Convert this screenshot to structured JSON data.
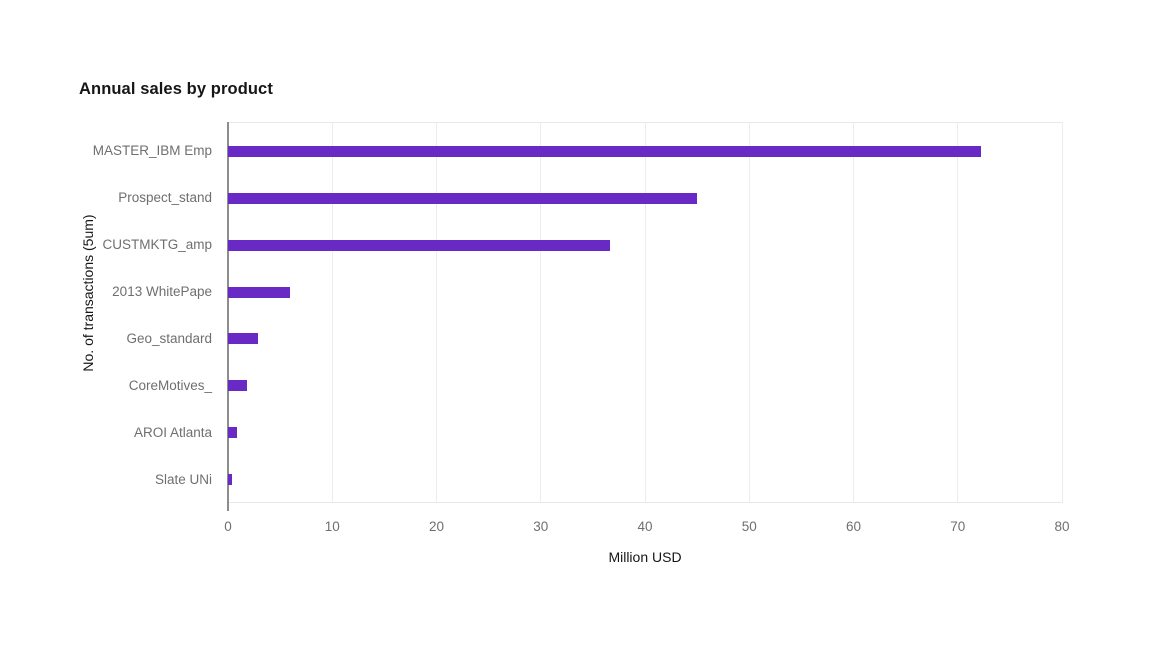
{
  "page": {
    "background": "#ffffff"
  },
  "chart_data": {
    "type": "bar",
    "orientation": "horizontal",
    "title": "Annual sales by product",
    "categories": [
      "MASTER_IBM Emp",
      "Prospect_stand",
      "CUSTMKTG_amp",
      "2013 WhitePape",
      "Geo_standard",
      "CoreMotives_",
      "AROI Atlanta",
      "Slate UNi"
    ],
    "values": [
      72.2,
      45,
      36.6,
      5.9,
      2.9,
      1.8,
      0.9,
      0.4
    ],
    "xlabel": "Million USD",
    "ylabel": "No. of transactions (5um)",
    "xlim": [
      0,
      80
    ],
    "xticks": [
      0,
      10,
      20,
      30,
      40,
      50,
      60,
      70,
      80
    ],
    "grid": "vertical-only",
    "legend": "none",
    "colors": {
      "bar": "#6929c4",
      "gridline": "#ececec",
      "axis_line": "#8d8d8d",
      "tick_label": "#6f6f6f",
      "axis_title": "#161616",
      "title": "#161616"
    }
  }
}
